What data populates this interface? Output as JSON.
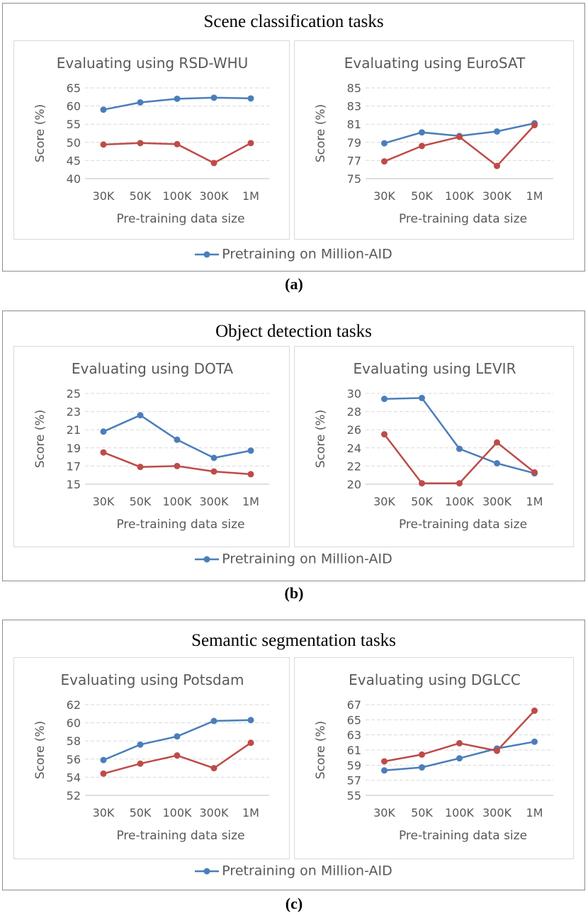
{
  "panels": [
    {
      "title": "Scene classification tasks",
      "caption": "(a)",
      "legend": {
        "label": "Pretraining on Million-AID"
      }
    },
    {
      "title": "Object detection tasks",
      "caption": "(b)",
      "legend": {
        "label": "Pretraining on Million-AID"
      }
    },
    {
      "title": "Semantic segmentation tasks",
      "caption": "(c)",
      "legend": {
        "label": "Pretraining on Million-AID"
      }
    }
  ],
  "colors": {
    "blue": "#4a7ebb",
    "red": "#be4b48",
    "grid": "#d9d9d9",
    "axis": "#595959"
  },
  "chart_data": [
    {
      "type": "line",
      "title": "Evaluating using RSD-WHU",
      "categories": [
        "30K",
        "50K",
        "100K",
        "300K",
        "1M"
      ],
      "xlabel": "Pre-training data size",
      "ylabel": "Score (%)",
      "ylim": [
        40,
        65
      ],
      "yticks": [
        40,
        45,
        50,
        55,
        60,
        65
      ],
      "series": [
        {
          "name": "Pretraining on Million-AID",
          "color": "#4a7ebb",
          "values": [
            59.0,
            61.0,
            62.0,
            62.3,
            62.1
          ]
        },
        {
          "name": "",
          "color": "#be4b48",
          "values": [
            49.4,
            49.8,
            49.5,
            44.3,
            49.8
          ]
        }
      ]
    },
    {
      "type": "line",
      "title": "Evaluating using EuroSAT",
      "categories": [
        "30K",
        "50K",
        "100K",
        "300K",
        "1M"
      ],
      "xlabel": "Pre-training data size",
      "ylabel": "Score (%)",
      "ylim": [
        75,
        85
      ],
      "yticks": [
        75,
        77,
        79,
        81,
        83,
        85
      ],
      "series": [
        {
          "name": "Pretraining on Million-AID",
          "color": "#4a7ebb",
          "values": [
            78.9,
            80.1,
            79.7,
            80.2,
            81.1
          ]
        },
        {
          "name": "",
          "color": "#be4b48",
          "values": [
            76.9,
            78.6,
            79.6,
            76.4,
            80.9
          ]
        }
      ]
    },
    {
      "type": "line",
      "title": "Evaluating using DOTA",
      "categories": [
        "30K",
        "50K",
        "100K",
        "300K",
        "1M"
      ],
      "xlabel": "Pre-training data size",
      "ylabel": "Score (%)",
      "ylim": [
        15,
        25
      ],
      "yticks": [
        15,
        17,
        19,
        21,
        23,
        25
      ],
      "series": [
        {
          "name": "Pretraining on Million-AID",
          "color": "#4a7ebb",
          "values": [
            20.8,
            22.6,
            19.9,
            17.9,
            18.7
          ]
        },
        {
          "name": "",
          "color": "#be4b48",
          "values": [
            18.5,
            16.9,
            17.0,
            16.4,
            16.1
          ]
        }
      ]
    },
    {
      "type": "line",
      "title": "Evaluating using LEVIR",
      "categories": [
        "30K",
        "50K",
        "100K",
        "300K",
        "1M"
      ],
      "xlabel": "Pre-training data size",
      "ylabel": "Score (%)",
      "ylim": [
        20,
        30
      ],
      "yticks": [
        20,
        22,
        24,
        26,
        28,
        30
      ],
      "series": [
        {
          "name": "Pretraining on Million-AID",
          "color": "#4a7ebb",
          "values": [
            29.4,
            29.5,
            23.9,
            22.3,
            21.2
          ]
        },
        {
          "name": "",
          "color": "#be4b48",
          "values": [
            25.5,
            20.1,
            20.1,
            24.6,
            21.3
          ]
        }
      ]
    },
    {
      "type": "line",
      "title": "Evaluating using Potsdam",
      "categories": [
        "30K",
        "50K",
        "100K",
        "300K",
        "1M"
      ],
      "xlabel": "Pre-training data size",
      "ylabel": "Score (%)",
      "ylim": [
        52,
        62
      ],
      "yticks": [
        52,
        54,
        56,
        58,
        60,
        62
      ],
      "series": [
        {
          "name": "Pretraining on Million-AID",
          "color": "#4a7ebb",
          "values": [
            55.9,
            57.6,
            58.5,
            60.2,
            60.3
          ]
        },
        {
          "name": "",
          "color": "#be4b48",
          "values": [
            54.4,
            55.5,
            56.4,
            55.0,
            57.8
          ]
        }
      ]
    },
    {
      "type": "line",
      "title": "Evaluating using DGLCC",
      "categories": [
        "30K",
        "50K",
        "100K",
        "300K",
        "1M"
      ],
      "xlabel": "Pre-training data size",
      "ylabel": "Score (%)",
      "ylim": [
        55,
        67
      ],
      "yticks": [
        55,
        57,
        59,
        61,
        63,
        65,
        67
      ],
      "series": [
        {
          "name": "Pretraining on Million-AID",
          "color": "#4a7ebb",
          "values": [
            58.3,
            58.7,
            59.9,
            61.2,
            62.1
          ]
        },
        {
          "name": "",
          "color": "#be4b48",
          "values": [
            59.5,
            60.4,
            61.9,
            60.9,
            66.2
          ]
        }
      ]
    }
  ]
}
